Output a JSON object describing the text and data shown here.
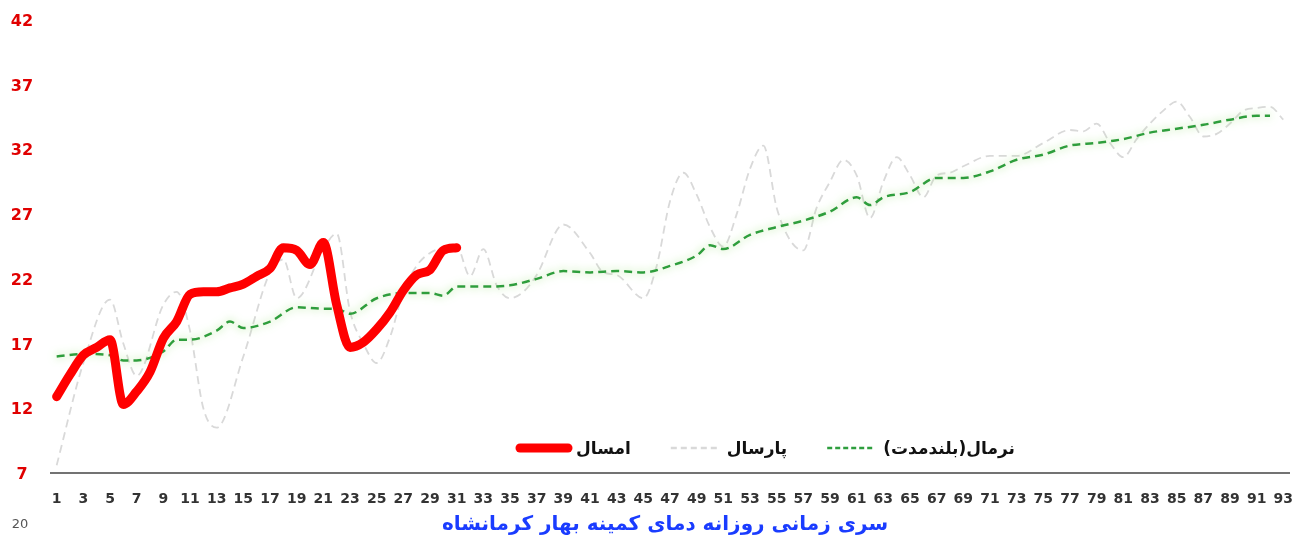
{
  "chart_data": {
    "type": "line",
    "title": "سری زمانی روزانه دمای کمینه بهار کرمانشاه",
    "annotations": [
      "20"
    ],
    "xlim": [
      0.5,
      93.5
    ],
    "xticks": [
      1,
      3,
      5,
      7,
      9,
      11,
      13,
      15,
      17,
      19,
      21,
      23,
      25,
      27,
      29,
      31,
      33,
      35,
      37,
      39,
      41,
      43,
      45,
      47,
      49,
      51,
      53,
      55,
      57,
      59,
      61,
      63,
      65,
      67,
      69,
      71,
      73,
      75,
      77,
      79,
      81,
      83,
      85,
      87,
      89,
      91,
      93
    ],
    "ylim": [
      7,
      42
    ],
    "yticks": [
      7,
      12,
      17,
      22,
      27,
      32,
      37,
      42
    ],
    "grid": false,
    "legend": "bottom",
    "marker": "none",
    "series": [
      {
        "name": "امسال",
        "color": "#ff0000",
        "line_style": "solid",
        "x": [
          1,
          2,
          3,
          4,
          5,
          6,
          7,
          8,
          9,
          10,
          11,
          12,
          13,
          14,
          15,
          16,
          17,
          18,
          19,
          20,
          21,
          22,
          23,
          24,
          25,
          26,
          27,
          28,
          29,
          30,
          31
        ],
        "values": [
          12.9,
          14.6,
          16.1,
          16.7,
          17.3,
          12.3,
          13.3,
          14.8,
          17.4,
          18.7,
          20.8,
          21.0,
          21.0,
          21.3,
          21.6,
          22.2,
          22.8,
          24.4,
          24.2,
          23.1,
          24.8,
          20.0,
          16.7,
          17.1,
          18.1,
          19.4,
          21.1,
          22.3,
          22.7,
          24.2,
          24.4
        ]
      },
      {
        "name": "پارسال",
        "color": "#d9d9d9",
        "line_style": "dashed",
        "x": [
          1,
          3,
          5,
          6,
          7,
          9,
          10,
          11,
          12,
          13,
          15,
          17,
          18,
          19,
          21,
          22,
          23,
          24,
          25,
          26,
          27,
          28,
          29,
          31,
          32,
          33,
          34,
          35,
          36,
          37,
          39,
          41,
          42,
          43,
          45,
          46,
          47,
          48,
          49,
          50,
          51,
          52,
          53,
          54,
          55,
          56,
          57,
          58,
          59,
          60,
          61,
          62,
          63,
          64,
          65,
          66,
          67,
          68,
          69,
          71,
          73,
          75,
          77,
          78,
          79,
          80,
          81,
          82,
          83,
          84,
          85,
          86,
          87,
          88,
          89,
          90,
          91,
          92,
          93
        ],
        "values": [
          7.6,
          15.5,
          20.4,
          17,
          14.5,
          20,
          21,
          18,
          12,
          10.5,
          16,
          22.5,
          23.5,
          20.5,
          24.3,
          25.5,
          19.5,
          17,
          15.5,
          17.5,
          21,
          23,
          24,
          24.5,
          22.2,
          24.3,
          21.5,
          20.5,
          21,
          22.3,
          26.2,
          24,
          22.5,
          22.3,
          20.5,
          23,
          28,
          30.2,
          28.5,
          26,
          24.5,
          27,
          30.5,
          32.3,
          27.5,
          25,
          24.2,
          27.5,
          29.5,
          31.2,
          30,
          26.7,
          29.5,
          31.4,
          30,
          28.3,
          30,
          30.2,
          30.7,
          31.5,
          31.5,
          32.5,
          33.5,
          33.4,
          34,
          32.5,
          31.4,
          32.8,
          34,
          35,
          35.7,
          34.5,
          33,
          33.2,
          34,
          35,
          35.2,
          35.3,
          34.3
        ]
      },
      {
        "name": "نرمال(بلندمدت)",
        "color": "#2e9e3e",
        "line_style": "dashed",
        "x": [
          1,
          3,
          5,
          6,
          7,
          9,
          10,
          11,
          13,
          14,
          15,
          17,
          19,
          21,
          22,
          23,
          25,
          27,
          29,
          30,
          31,
          33,
          35,
          37,
          39,
          41,
          43,
          45,
          47,
          49,
          50,
          51,
          53,
          55,
          57,
          59,
          61,
          62,
          63,
          65,
          67,
          69,
          71,
          73,
          75,
          77,
          79,
          81,
          83,
          85,
          87,
          89,
          91,
          92
        ],
        "values": [
          16.0,
          16.2,
          16.1,
          15.7,
          15.7,
          16.4,
          17.3,
          17.3,
          18.0,
          18.7,
          18.2,
          18.7,
          19.8,
          19.7,
          19.7,
          19.3,
          20.5,
          20.9,
          20.9,
          20.7,
          21.4,
          21.4,
          21.5,
          22.0,
          22.6,
          22.5,
          22.6,
          22.5,
          23.0,
          23.8,
          24.6,
          24.3,
          25.4,
          26.0,
          26.5,
          27.2,
          28.3,
          27.7,
          28.3,
          28.7,
          29.8,
          29.8,
          30.3,
          31.2,
          31.6,
          32.3,
          32.5,
          32.8,
          33.3,
          33.6,
          33.9,
          34.3,
          34.6,
          34.6
        ]
      }
    ]
  }
}
